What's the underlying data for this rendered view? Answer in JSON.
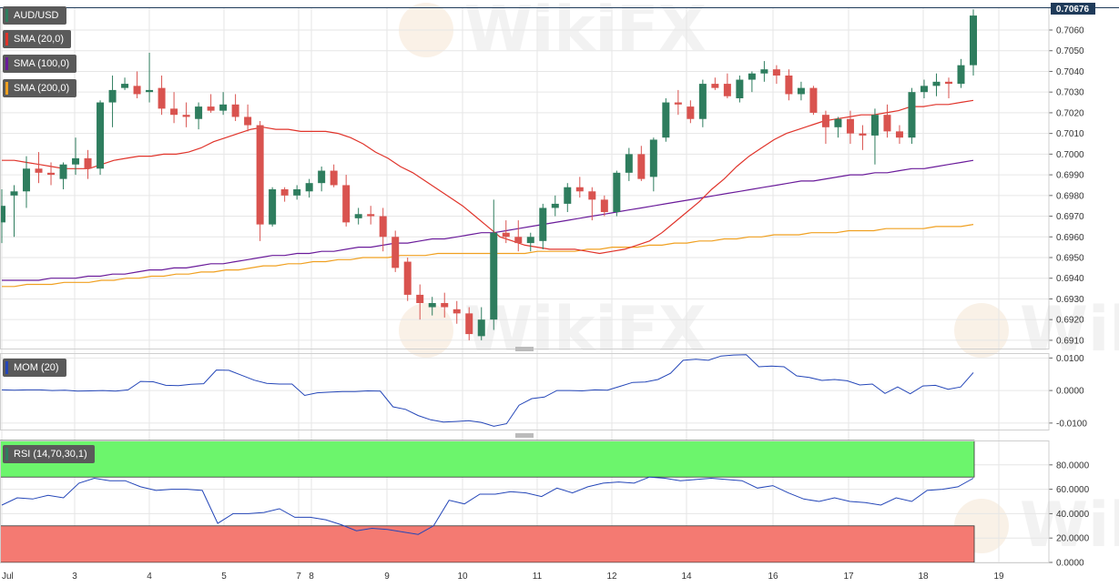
{
  "colors": {
    "up": "#2e7d5e",
    "down": "#d9534f",
    "sma20": "#e0342b",
    "sma100": "#6a1b9a",
    "sma200": "#f0a020",
    "mom": "#2446b8",
    "rsi": "#2446b8",
    "rsi_over": "#6cf56c",
    "rsi_under": "#f47a72",
    "grid": "#e6e6e6"
  },
  "legend": {
    "symbol": "AUD/USD",
    "sma20": "SMA (20,0)",
    "sma100": "SMA (100,0)",
    "sma200": "SMA (200,0)",
    "mom": "MOM (20)",
    "rsi": "RSI (14,70,30,1)"
  },
  "watermark": "WikiFX",
  "last_price_label": "0.70676",
  "chart_data": [
    {
      "type": "candlestick",
      "symbol": "AUD/USD",
      "ylim": [
        0.6906,
        0.7071
      ],
      "y_ticks": [
        "0.7060",
        "0.7050",
        "0.7040",
        "0.7030",
        "0.7020",
        "0.7010",
        "0.7000",
        "0.6990",
        "0.6980",
        "0.6970",
        "0.6960",
        "0.6950",
        "0.6940",
        "0.6930",
        "0.6920",
        "0.6910"
      ],
      "x_ticks": [
        "Jul",
        "3",
        "4",
        "5",
        "7",
        "8",
        "9",
        "10",
        "11",
        "12",
        "14",
        "16",
        "17",
        "18",
        "19"
      ],
      "candles": [
        [
          0.6967,
          0.6983,
          0.6957,
          0.6975
        ],
        [
          0.698,
          0.6985,
          0.696,
          0.6982
        ],
        [
          0.6982,
          0.6999,
          0.6974,
          0.6993
        ],
        [
          0.6993,
          0.7001,
          0.6986,
          0.6991
        ],
        [
          0.6991,
          0.6996,
          0.6985,
          0.699
        ],
        [
          0.6988,
          0.6996,
          0.6983,
          0.6995
        ],
        [
          0.6995,
          0.7008,
          0.699,
          0.6998
        ],
        [
          0.6998,
          0.7002,
          0.6988,
          0.6993
        ],
        [
          0.6993,
          0.7026,
          0.699,
          0.7025
        ],
        [
          0.7025,
          0.7038,
          0.7013,
          0.7031
        ],
        [
          0.7032,
          0.7037,
          0.7031,
          0.7034
        ],
        [
          0.7033,
          0.704,
          0.7027,
          0.7029
        ],
        [
          0.703,
          0.7049,
          0.7025,
          0.7031
        ],
        [
          0.7032,
          0.7038,
          0.7019,
          0.7022
        ],
        [
          0.7022,
          0.703,
          0.7015,
          0.7019
        ],
        [
          0.7019,
          0.7025,
          0.7013,
          0.7018
        ],
        [
          0.7017,
          0.7025,
          0.7012,
          0.7023
        ],
        [
          0.7023,
          0.7029,
          0.702,
          0.7021
        ],
        [
          0.7021,
          0.703,
          0.7019,
          0.7024
        ],
        [
          0.7024,
          0.7029,
          0.7016,
          0.7018
        ],
        [
          0.7018,
          0.7024,
          0.7011,
          0.7014
        ],
        [
          0.7014,
          0.7016,
          0.6958,
          0.6966
        ],
        [
          0.6966,
          0.6984,
          0.6965,
          0.6983
        ],
        [
          0.6983,
          0.6984,
          0.6977,
          0.698
        ],
        [
          0.698,
          0.6985,
          0.6978,
          0.6983
        ],
        [
          0.6982,
          0.6988,
          0.6979,
          0.6986
        ],
        [
          0.6986,
          0.6994,
          0.6982,
          0.6992
        ],
        [
          0.6992,
          0.6995,
          0.6984,
          0.6985
        ],
        [
          0.6985,
          0.699,
          0.6965,
          0.6967
        ],
        [
          0.6969,
          0.6974,
          0.6966,
          0.6971
        ],
        [
          0.6971,
          0.6975,
          0.6966,
          0.697
        ],
        [
          0.697,
          0.6974,
          0.6953,
          0.696
        ],
        [
          0.696,
          0.6963,
          0.6943,
          0.6945
        ],
        [
          0.6948,
          0.695,
          0.6929,
          0.6932
        ],
        [
          0.6932,
          0.6937,
          0.692,
          0.6928
        ],
        [
          0.6926,
          0.6931,
          0.6922,
          0.6928
        ],
        [
          0.6928,
          0.6933,
          0.6921,
          0.6926
        ],
        [
          0.6925,
          0.6929,
          0.6918,
          0.6923
        ],
        [
          0.6923,
          0.6926,
          0.691,
          0.6913
        ],
        [
          0.6912,
          0.6926,
          0.691,
          0.692
        ],
        [
          0.692,
          0.6978,
          0.6915,
          0.6962
        ],
        [
          0.6962,
          0.6968,
          0.6957,
          0.696
        ],
        [
          0.696,
          0.6968,
          0.6953,
          0.6957
        ],
        [
          0.6957,
          0.6962,
          0.6953,
          0.696
        ],
        [
          0.6958,
          0.6976,
          0.6954,
          0.6974
        ],
        [
          0.6974,
          0.698,
          0.697,
          0.6976
        ],
        [
          0.6976,
          0.6986,
          0.6972,
          0.6984
        ],
        [
          0.6984,
          0.6989,
          0.6979,
          0.6982
        ],
        [
          0.6982,
          0.6984,
          0.6968,
          0.6978
        ],
        [
          0.6978,
          0.698,
          0.697,
          0.6972
        ],
        [
          0.6972,
          0.6992,
          0.697,
          0.6991
        ],
        [
          0.6991,
          0.7003,
          0.6987,
          0.7
        ],
        [
          0.7,
          0.7004,
          0.6987,
          0.6988
        ],
        [
          0.6989,
          0.7008,
          0.6982,
          0.7007
        ],
        [
          0.7008,
          0.7027,
          0.7006,
          0.7025
        ],
        [
          0.7025,
          0.7031,
          0.7019,
          0.7024
        ],
        [
          0.7023,
          0.7026,
          0.7015,
          0.7017
        ],
        [
          0.7017,
          0.7036,
          0.7013,
          0.7034
        ],
        [
          0.7034,
          0.7037,
          0.7031,
          0.7032
        ],
        [
          0.7034,
          0.7039,
          0.7027,
          0.7028
        ],
        [
          0.7027,
          0.7038,
          0.7025,
          0.7036
        ],
        [
          0.7036,
          0.704,
          0.703,
          0.7039
        ],
        [
          0.7039,
          0.7045,
          0.7035,
          0.7041
        ],
        [
          0.7041,
          0.7043,
          0.7034,
          0.7038
        ],
        [
          0.7038,
          0.7041,
          0.7026,
          0.7029
        ],
        [
          0.7029,
          0.7035,
          0.7026,
          0.7032
        ],
        [
          0.7032,
          0.7033,
          0.7019,
          0.702
        ],
        [
          0.7019,
          0.7021,
          0.7005,
          0.7013
        ],
        [
          0.7013,
          0.7018,
          0.7008,
          0.7017
        ],
        [
          0.7017,
          0.7021,
          0.7005,
          0.701
        ],
        [
          0.701,
          0.7014,
          0.7002,
          0.7009
        ],
        [
          0.7009,
          0.7022,
          0.6995,
          0.7019
        ],
        [
          0.7019,
          0.7024,
          0.7008,
          0.7011
        ],
        [
          0.7011,
          0.7014,
          0.7005,
          0.7008
        ],
        [
          0.7008,
          0.7032,
          0.7005,
          0.703
        ],
        [
          0.703,
          0.7036,
          0.7027,
          0.7033
        ],
        [
          0.7033,
          0.7039,
          0.7028,
          0.7035
        ],
        [
          0.7035,
          0.7037,
          0.7027,
          0.7034
        ],
        [
          0.7034,
          0.7046,
          0.7032,
          0.7043
        ],
        [
          0.7043,
          0.707,
          0.7038,
          0.7067
        ]
      ],
      "series": [
        {
          "name": "SMA (20,0)",
          "values": [
            0.6997,
            0.6997,
            0.6996,
            0.6995,
            0.6994,
            0.6993,
            0.6993,
            0.6993,
            0.6995,
            0.6997,
            0.6998,
            0.6999,
            0.6999,
            0.7,
            0.7,
            0.7001,
            0.7003,
            0.7006,
            0.7008,
            0.701,
            0.7012,
            0.7013,
            0.7012,
            0.7012,
            0.7011,
            0.7011,
            0.7011,
            0.701,
            0.7008,
            0.7005,
            0.7001,
            0.6998,
            0.6994,
            0.6991,
            0.6987,
            0.6983,
            0.6979,
            0.6975,
            0.697,
            0.6965,
            0.696,
            0.6958,
            0.6956,
            0.6955,
            0.6954,
            0.6954,
            0.6954,
            0.6953,
            0.6952,
            0.6953,
            0.6954,
            0.6956,
            0.6958,
            0.6962,
            0.6967,
            0.6972,
            0.6977,
            0.6983,
            0.6988,
            0.6994,
            0.6999,
            0.7003,
            0.7007,
            0.701,
            0.7012,
            0.7014,
            0.7016,
            0.7017,
            0.7018,
            0.7019,
            0.7019,
            0.702,
            0.7021,
            0.7023,
            0.7023,
            0.7024,
            0.7024,
            0.7025,
            0.7026
          ]
        },
        {
          "name": "SMA (100,0)",
          "values": [
            0.6939,
            0.6939,
            0.6939,
            0.6939,
            0.694,
            0.694,
            0.694,
            0.6941,
            0.6941,
            0.6942,
            0.6942,
            0.6943,
            0.6944,
            0.6944,
            0.6945,
            0.6945,
            0.6946,
            0.6947,
            0.6947,
            0.6948,
            0.6949,
            0.695,
            0.6951,
            0.6951,
            0.6952,
            0.6952,
            0.6953,
            0.6953,
            0.6954,
            0.6955,
            0.6955,
            0.6956,
            0.6957,
            0.6957,
            0.6958,
            0.6959,
            0.6959,
            0.696,
            0.6961,
            0.6962,
            0.6962,
            0.6963,
            0.6964,
            0.6965,
            0.6966,
            0.6967,
            0.6968,
            0.6969,
            0.697,
            0.6971,
            0.6972,
            0.6973,
            0.6974,
            0.6975,
            0.6976,
            0.6977,
            0.6978,
            0.6979,
            0.698,
            0.6981,
            0.6982,
            0.6983,
            0.6984,
            0.6985,
            0.6986,
            0.6987,
            0.6987,
            0.6988,
            0.6989,
            0.699,
            0.699,
            0.6991,
            0.6991,
            0.6992,
            0.6993,
            0.6993,
            0.6994,
            0.6995,
            0.6996,
            0.6997
          ]
        },
        {
          "name": "SMA (200,0)",
          "values": [
            0.6936,
            0.6936,
            0.6937,
            0.6937,
            0.6937,
            0.6938,
            0.6938,
            0.6938,
            0.6939,
            0.6939,
            0.694,
            0.694,
            0.6941,
            0.6941,
            0.6942,
            0.6942,
            0.6943,
            0.6943,
            0.6944,
            0.6944,
            0.6945,
            0.6946,
            0.6946,
            0.6947,
            0.6947,
            0.6948,
            0.6948,
            0.6949,
            0.6949,
            0.695,
            0.695,
            0.695,
            0.6951,
            0.6951,
            0.6951,
            0.6952,
            0.6952,
            0.6952,
            0.6952,
            0.6952,
            0.6952,
            0.6952,
            0.6952,
            0.6953,
            0.6953,
            0.6953,
            0.6953,
            0.6954,
            0.6954,
            0.6955,
            0.6955,
            0.6955,
            0.6956,
            0.6956,
            0.6957,
            0.6957,
            0.6958,
            0.6958,
            0.6959,
            0.6959,
            0.696,
            0.696,
            0.6961,
            0.6961,
            0.6961,
            0.6962,
            0.6962,
            0.6962,
            0.6963,
            0.6963,
            0.6963,
            0.6964,
            0.6964,
            0.6964,
            0.6964,
            0.6965,
            0.6965,
            0.6965,
            0.6966
          ]
        }
      ]
    },
    {
      "type": "line",
      "name": "MOM (20)",
      "ylim": [
        -0.012,
        0.0115
      ],
      "y_ticks": [
        "0.0100",
        "0.0000",
        "-0.0100"
      ],
      "values": [
        0.0002,
        0.0001,
        0.0002,
        0.0002,
        0.0,
        0.0001,
        -0.0002,
        -0.0001,
        0.0,
        -0.0002,
        0.0002,
        0.0028,
        0.0027,
        0.0016,
        0.0015,
        0.0019,
        0.0021,
        0.0063,
        0.0062,
        0.0047,
        0.0032,
        0.0022,
        0.002,
        0.002,
        -0.0015,
        -0.0007,
        -0.0005,
        -0.0003,
        -0.0003,
        -0.0001,
        -0.0002,
        -0.005,
        -0.0058,
        -0.0077,
        -0.009,
        -0.0097,
        -0.0095,
        -0.0093,
        -0.0098,
        -0.011,
        -0.0102,
        -0.0045,
        -0.0025,
        -0.002,
        0.0,
        0.0,
        -0.0001,
        0.0002,
        0.0001,
        0.0013,
        0.0025,
        0.0026,
        0.0034,
        0.0053,
        0.0093,
        0.0096,
        0.0093,
        0.0106,
        0.0109,
        0.011,
        0.0073,
        0.0075,
        0.0073,
        0.0045,
        0.004,
        0.0031,
        0.0034,
        0.003,
        0.0017,
        0.002,
        -0.0009,
        0.0011,
        -0.001,
        0.0014,
        0.0016,
        0.0004,
        0.0011,
        0.0055
      ]
    },
    {
      "type": "line",
      "name": "RSI (14,70,30,1)",
      "ylim": [
        0,
        100
      ],
      "y_ticks": [
        "80.0000",
        "60.0000",
        "40.0000",
        "20.0000",
        "0.0000"
      ],
      "overbought": 70,
      "oversold": 30,
      "values": [
        47,
        53,
        52,
        55,
        53,
        65,
        69,
        67,
        67,
        62,
        59,
        60,
        60,
        59,
        32,
        40,
        40,
        41,
        44,
        37,
        37,
        35,
        31,
        26,
        28,
        27,
        25,
        23,
        30,
        51,
        48,
        56,
        56,
        58,
        57,
        54,
        61,
        57,
        62,
        65,
        66,
        65,
        70,
        69,
        67,
        68,
        69,
        68,
        67,
        61,
        63,
        57,
        52,
        50,
        53,
        50,
        49,
        47,
        53,
        50,
        59,
        60,
        62,
        69
      ]
    }
  ]
}
